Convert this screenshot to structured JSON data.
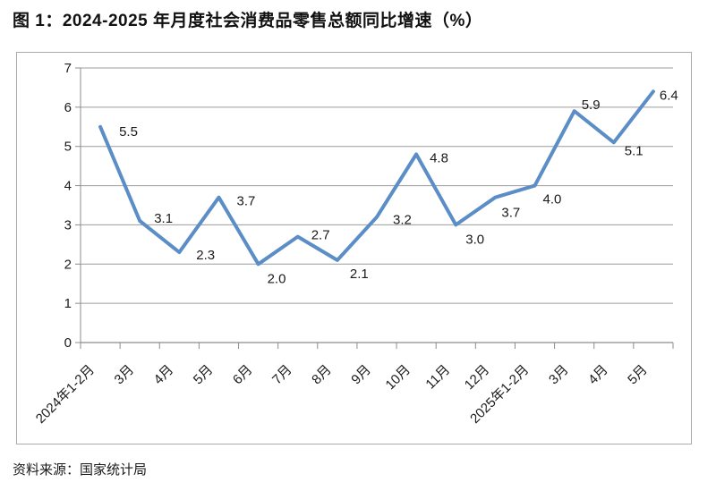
{
  "title": "图 1：2024-2025 年月度社会消费品零售总额同比增速（%）",
  "source": "资料来源：国家统计局",
  "chart_data": {
    "type": "line",
    "title": "2024-2025 年月度社会消费品零售总额同比增速（%）",
    "categories": [
      "2024年1-2月",
      "3月",
      "4月",
      "5月",
      "6月",
      "7月",
      "8月",
      "9月",
      "10月",
      "11月",
      "12月",
      "2025年1-2月",
      "3月",
      "4月",
      "5月"
    ],
    "values": [
      5.5,
      3.1,
      2.3,
      3.7,
      2.0,
      2.7,
      2.1,
      3.2,
      4.8,
      3.0,
      3.7,
      4.0,
      5.9,
      5.1,
      6.4
    ],
    "data_labels": [
      "5.5",
      "3.1",
      "2.3",
      "3.7",
      "2.0",
      "2.7",
      "2.1",
      "3.2",
      "4.8",
      "3.0",
      "3.7",
      "4.0",
      "5.9",
      "5.1",
      "6.4"
    ],
    "xlabel": "",
    "ylabel": "",
    "ylim": [
      0,
      7
    ],
    "yticks": [
      0,
      1,
      2,
      3,
      4,
      5,
      6,
      7
    ],
    "grid": true,
    "legend": "none",
    "line_color": "#5b8dc6",
    "grid_color": "#9c9c9c",
    "axis_color": "#8c8c8c",
    "label_color": "#1a1a1a"
  }
}
